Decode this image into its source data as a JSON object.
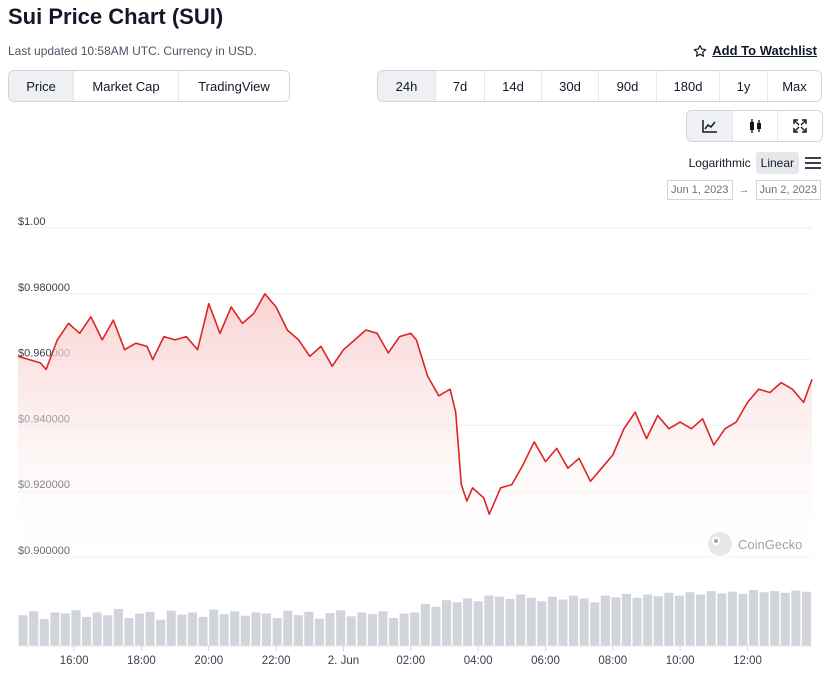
{
  "header": {
    "title": "Sui Price Chart (SUI)",
    "updated": "Last updated 10:58AM UTC. Currency in USD.",
    "watchlist_label": "Add To Watchlist"
  },
  "chart_type_tabs": [
    {
      "label": "Price",
      "active": true
    },
    {
      "label": "Market Cap",
      "active": false
    },
    {
      "label": "TradingView",
      "active": false
    }
  ],
  "range_tabs": [
    {
      "label": "24h",
      "active": true
    },
    {
      "label": "7d",
      "active": false
    },
    {
      "label": "14d",
      "active": false
    },
    {
      "label": "30d",
      "active": false
    },
    {
      "label": "90d",
      "active": false
    },
    {
      "label": "180d",
      "active": false
    },
    {
      "label": "1y",
      "active": false
    },
    {
      "label": "Max",
      "active": false
    }
  ],
  "tools": [
    "line-chart-icon",
    "candlestick-icon",
    "expand-icon"
  ],
  "scale": {
    "logarithmic": "Logarithmic",
    "linear": "Linear",
    "selected": "Linear"
  },
  "date_range": {
    "from": "Jun 1, 2023",
    "arrow": "→",
    "to": "Jun 2, 2023"
  },
  "watermark": "CoinGecko",
  "colors": {
    "line": "#dc2626",
    "fill": "#fdecec",
    "volume": "#d1d5db",
    "active_tab": "#eef0f3"
  },
  "chart_data": {
    "type": "line",
    "title": "",
    "xlabel": "",
    "ylabel": "",
    "ylim": [
      0.9,
      1.0
    ],
    "xlim": [
      "2023-06-01T14:20",
      "2023-06-02T13:55"
    ],
    "y_ticks": [
      "$1.00",
      "$0.980000",
      "$0.960000",
      "$0.940000",
      "$0.920000",
      "$0.900000"
    ],
    "y_tick_values": [
      1.0,
      0.98,
      0.96,
      0.94,
      0.92,
      0.9
    ],
    "x_ticks": [
      "16:00",
      "18:00",
      "20:00",
      "22:00",
      "2. Jun",
      "02:00",
      "04:00",
      "06:00",
      "08:00",
      "10:00",
      "12:00"
    ],
    "x_tick_times": [
      "2023-06-01T16:00",
      "2023-06-01T18:00",
      "2023-06-01T20:00",
      "2023-06-01T22:00",
      "2023-06-02T00:00",
      "2023-06-02T02:00",
      "2023-06-02T04:00",
      "2023-06-02T06:00",
      "2023-06-02T08:00",
      "2023-06-02T10:00",
      "2023-06-02T12:00"
    ],
    "grid": true,
    "series": [
      {
        "values": [
          [
            "2023-06-01T14:20",
            0.961
          ],
          [
            "2023-06-01T14:40",
            0.96
          ],
          [
            "2023-06-01T15:00",
            0.959
          ],
          [
            "2023-06-01T15:10",
            0.957
          ],
          [
            "2023-06-01T15:30",
            0.966
          ],
          [
            "2023-06-01T15:50",
            0.971
          ],
          [
            "2023-06-01T16:10",
            0.968
          ],
          [
            "2023-06-01T16:30",
            0.973
          ],
          [
            "2023-06-01T16:50",
            0.966
          ],
          [
            "2023-06-01T17:10",
            0.972
          ],
          [
            "2023-06-01T17:30",
            0.963
          ],
          [
            "2023-06-01T17:50",
            0.965
          ],
          [
            "2023-06-01T18:10",
            0.964
          ],
          [
            "2023-06-01T18:20",
            0.96
          ],
          [
            "2023-06-01T18:40",
            0.967
          ],
          [
            "2023-06-01T19:00",
            0.966
          ],
          [
            "2023-06-01T19:20",
            0.967
          ],
          [
            "2023-06-01T19:40",
            0.963
          ],
          [
            "2023-06-01T20:00",
            0.977
          ],
          [
            "2023-06-01T20:20",
            0.968
          ],
          [
            "2023-06-01T20:40",
            0.976
          ],
          [
            "2023-06-01T21:00",
            0.971
          ],
          [
            "2023-06-01T21:20",
            0.974
          ],
          [
            "2023-06-01T21:40",
            0.98
          ],
          [
            "2023-06-01T22:00",
            0.976
          ],
          [
            "2023-06-01T22:20",
            0.969
          ],
          [
            "2023-06-01T22:40",
            0.966
          ],
          [
            "2023-06-01T23:00",
            0.961
          ],
          [
            "2023-06-01T23:20",
            0.964
          ],
          [
            "2023-06-01T23:40",
            0.958
          ],
          [
            "2023-06-02T00:00",
            0.963
          ],
          [
            "2023-06-02T00:20",
            0.966
          ],
          [
            "2023-06-02T00:40",
            0.969
          ],
          [
            "2023-06-02T01:00",
            0.968
          ],
          [
            "2023-06-02T01:20",
            0.962
          ],
          [
            "2023-06-02T01:40",
            0.967
          ],
          [
            "2023-06-02T02:00",
            0.968
          ],
          [
            "2023-06-02T02:10",
            0.966
          ],
          [
            "2023-06-02T02:30",
            0.955
          ],
          [
            "2023-06-02T02:50",
            0.949
          ],
          [
            "2023-06-02T03:10",
            0.951
          ],
          [
            "2023-06-02T03:20",
            0.944
          ],
          [
            "2023-06-02T03:30",
            0.922
          ],
          [
            "2023-06-02T03:40",
            0.917
          ],
          [
            "2023-06-02T03:50",
            0.921
          ],
          [
            "2023-06-02T04:10",
            0.918
          ],
          [
            "2023-06-02T04:20",
            0.913
          ],
          [
            "2023-06-02T04:40",
            0.921
          ],
          [
            "2023-06-02T05:00",
            0.922
          ],
          [
            "2023-06-02T05:20",
            0.928
          ],
          [
            "2023-06-02T05:40",
            0.935
          ],
          [
            "2023-06-02T06:00",
            0.929
          ],
          [
            "2023-06-02T06:20",
            0.933
          ],
          [
            "2023-06-02T06:40",
            0.927
          ],
          [
            "2023-06-02T07:00",
            0.93
          ],
          [
            "2023-06-02T07:20",
            0.923
          ],
          [
            "2023-06-02T07:40",
            0.927
          ],
          [
            "2023-06-02T08:00",
            0.931
          ],
          [
            "2023-06-02T08:20",
            0.939
          ],
          [
            "2023-06-02T08:40",
            0.944
          ],
          [
            "2023-06-02T09:00",
            0.936
          ],
          [
            "2023-06-02T09:20",
            0.943
          ],
          [
            "2023-06-02T09:40",
            0.939
          ],
          [
            "2023-06-02T10:00",
            0.941
          ],
          [
            "2023-06-02T10:20",
            0.939
          ],
          [
            "2023-06-02T10:40",
            0.942
          ],
          [
            "2023-06-02T11:00",
            0.934
          ],
          [
            "2023-06-02T11:20",
            0.939
          ],
          [
            "2023-06-02T11:40",
            0.941
          ],
          [
            "2023-06-02T12:00",
            0.947
          ],
          [
            "2023-06-02T12:20",
            0.951
          ],
          [
            "2023-06-02T12:40",
            0.95
          ],
          [
            "2023-06-02T13:00",
            0.953
          ],
          [
            "2023-06-02T13:20",
            0.951
          ],
          [
            "2023-06-02T13:40",
            0.947
          ],
          [
            "2023-06-02T13:55",
            0.954
          ]
        ]
      }
    ],
    "volume_relative": [
      0.55,
      0.62,
      0.48,
      0.6,
      0.58,
      0.64,
      0.52,
      0.6,
      0.55,
      0.66,
      0.5,
      0.58,
      0.61,
      0.47,
      0.63,
      0.56,
      0.6,
      0.52,
      0.65,
      0.57,
      0.62,
      0.54,
      0.6,
      0.58,
      0.5,
      0.63,
      0.55,
      0.61,
      0.49,
      0.59,
      0.64,
      0.53,
      0.6,
      0.57,
      0.62,
      0.5,
      0.58,
      0.6,
      0.75,
      0.7,
      0.82,
      0.78,
      0.85,
      0.8,
      0.9,
      0.88,
      0.84,
      0.92,
      0.86,
      0.8,
      0.88,
      0.83,
      0.9,
      0.85,
      0.78,
      0.9,
      0.87,
      0.93,
      0.86,
      0.92,
      0.89,
      0.95,
      0.9,
      0.96,
      0.92,
      0.98,
      0.94,
      0.97,
      0.93,
      1.0,
      0.96,
      0.98,
      0.95,
      0.99,
      0.97
    ]
  }
}
